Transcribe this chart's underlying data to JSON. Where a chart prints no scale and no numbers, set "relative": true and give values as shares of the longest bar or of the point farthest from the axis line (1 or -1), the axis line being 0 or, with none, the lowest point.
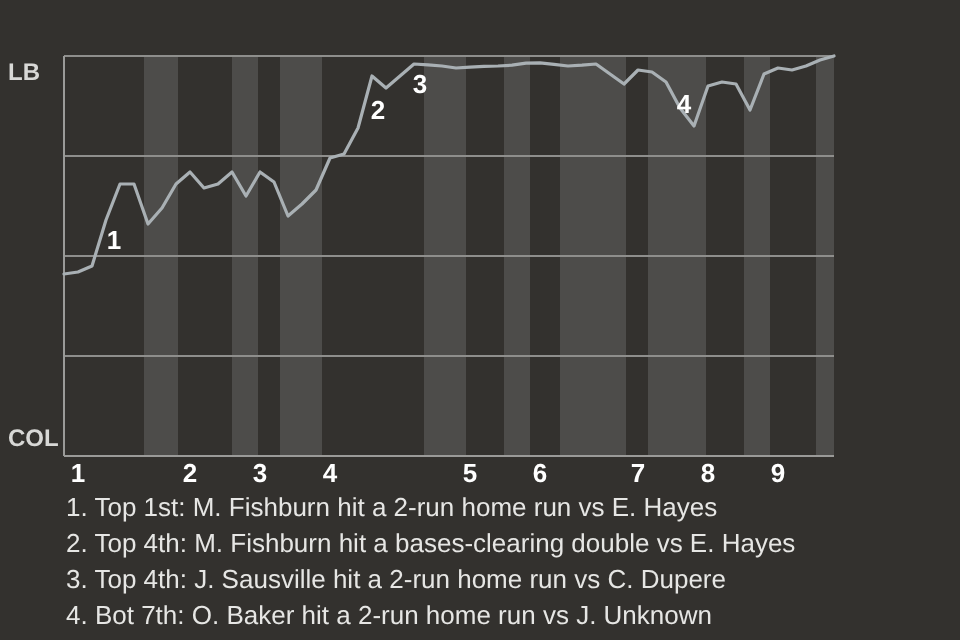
{
  "chart_data": {
    "type": "line",
    "relative": true,
    "categories": [
      null,
      "1",
      null,
      null,
      null,
      null,
      null,
      null,
      null,
      "2",
      null,
      null,
      null,
      null,
      "3",
      null,
      null,
      null,
      null,
      "4",
      null,
      null,
      null,
      null,
      null,
      null,
      null,
      null,
      null,
      "5",
      null,
      null,
      null,
      null,
      "6",
      null,
      null,
      null,
      null,
      null,
      null,
      "7",
      null,
      null,
      null,
      null,
      "8",
      null,
      null,
      null,
      null,
      "9",
      null,
      null,
      null,
      null
    ],
    "marker": "none",
    "line_style": "solid",
    "ref_lines": [
      {
        "axis": "y",
        "value": 0.25,
        "color": "#8e8e8c"
      },
      {
        "axis": "y",
        "value": 0.5,
        "color": "#8e8e8c"
      },
      {
        "axis": "y",
        "value": 0.75,
        "color": "#8e8e8c"
      }
    ],
    "series": [
      {
        "color": "#a9b0b4",
        "values": [
          0.455,
          0.46,
          0.475,
          0.59,
          0.68,
          0.68,
          0.58,
          0.62,
          0.68,
          0.71,
          0.67,
          0.68,
          0.71,
          0.65,
          0.71,
          0.685,
          0.6,
          0.63,
          0.665,
          0.745,
          0.755,
          0.82,
          0.95,
          0.92,
          0.95,
          0.98,
          0.978,
          0.975,
          0.97,
          0.972,
          0.974,
          0.975,
          0.977,
          0.982,
          0.983,
          0.979,
          0.975,
          0.977,
          0.98,
          0.955,
          0.93,
          0.965,
          0.96,
          0.935,
          0.87,
          0.825,
          0.925,
          0.935,
          0.93,
          0.865,
          0.955,
          0.97,
          0.965,
          0.975,
          0.99,
          1
        ]
      }
    ],
    "annotations": [
      "LB",
      "COL",
      "1",
      "2",
      "3",
      "4",
      "1. Top 1st: M. Fishburn hit a 2-run home run vs E. Hayes",
      "2. Top 4th: M. Fishburn hit a bases-clearing double vs E. Hayes",
      "3. Top 4th: J. Sausville hit a 2-run home run vs C. Dupere",
      "4. Bot 7th: O. Baker hit a 2-run home run vs J. Unknown"
    ]
  }
}
